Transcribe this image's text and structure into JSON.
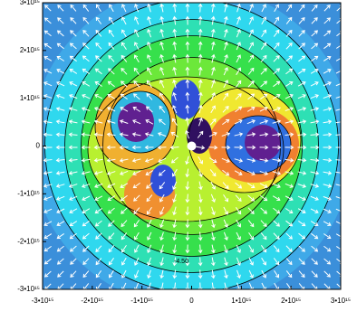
{
  "chart_data": {
    "type": "contour",
    "xlim": [
      -3000000000000000.0,
      3000000000000000.0
    ],
    "ylim": [
      -3000000000000000.0,
      3000000000000000.0
    ],
    "xticks": [
      {
        "value": -3000000000000000.0,
        "label": "-3•10¹⁵"
      },
      {
        "value": -2000000000000000.0,
        "label": "-2•10¹⁵"
      },
      {
        "value": -1000000000000000.0,
        "label": "-1•10¹⁵"
      },
      0,
      {
        "value": 1000000000000000.0,
        "label": "1•10¹⁵"
      },
      {
        "value": 2000000000000000.0,
        "label": "2•10¹⁵"
      },
      {
        "value": 3000000000000000.0,
        "label": "3•10¹⁵"
      }
    ],
    "yticks": [
      {
        "value": -3000000000000000.0,
        "label": "-3•10¹⁵"
      },
      {
        "value": -2000000000000000.0,
        "label": "-2•10¹⁵"
      },
      {
        "value": -1000000000000000.0,
        "label": "-1•10¹⁵"
      },
      0,
      {
        "value": 1000000000000000.0,
        "label": "1•10¹⁵"
      },
      {
        "value": 2000000000000000.0,
        "label": "2•10¹⁵"
      },
      {
        "value": 3000000000000000.0,
        "label": "3•10¹⁵"
      }
    ],
    "annotations": [
      "-4.50"
    ]
  }
}
